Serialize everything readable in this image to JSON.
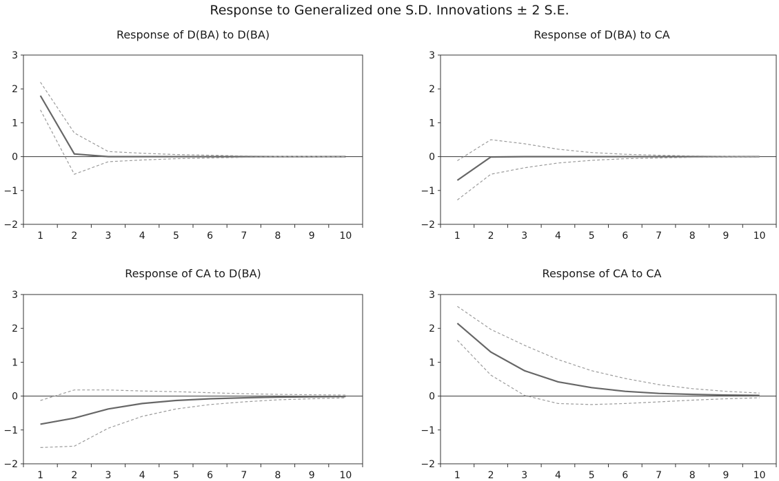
{
  "title": "Response to Generalized one S.D. Innovations ± 2 S.E.",
  "colors": {
    "response": "#666666",
    "band": "#9a9a9a",
    "axis": "#333333"
  },
  "chart_data": [
    {
      "type": "line",
      "title": "Response of D(BA) to D(BA)",
      "x": [
        1,
        2,
        3,
        4,
        5,
        6,
        7,
        8,
        9,
        10
      ],
      "ylim": [
        -2,
        3
      ],
      "yticks": [
        -2,
        -1,
        0,
        1,
        2,
        3
      ],
      "legend": "none",
      "series": [
        {
          "role": "response",
          "values": [
            1.8,
            0.08,
            0.0,
            0.0,
            0.0,
            0.0,
            0.0,
            0.0,
            0.0,
            0.0
          ]
        },
        {
          "role": "upper",
          "values": [
            2.2,
            0.7,
            0.15,
            0.1,
            0.06,
            0.04,
            0.02,
            0.01,
            0.01,
            0.0
          ]
        },
        {
          "role": "lower",
          "values": [
            1.38,
            -0.52,
            -0.15,
            -0.1,
            -0.06,
            -0.04,
            -0.02,
            -0.01,
            -0.01,
            0.0
          ]
        }
      ]
    },
    {
      "type": "line",
      "title": "Response of D(BA) to CA",
      "x": [
        1,
        2,
        3,
        4,
        5,
        6,
        7,
        8,
        9,
        10
      ],
      "ylim": [
        -2,
        3
      ],
      "yticks": [
        -2,
        -1,
        0,
        1,
        2,
        3
      ],
      "legend": "none",
      "series": [
        {
          "role": "response",
          "values": [
            -0.7,
            -0.01,
            0.0,
            0.0,
            0.0,
            0.0,
            0.0,
            0.0,
            0.0,
            0.0
          ]
        },
        {
          "role": "upper",
          "values": [
            -0.12,
            0.5,
            0.38,
            0.22,
            0.12,
            0.07,
            0.04,
            0.02,
            0.01,
            0.0
          ]
        },
        {
          "role": "lower",
          "values": [
            -1.28,
            -0.52,
            -0.33,
            -0.19,
            -0.11,
            -0.06,
            -0.04,
            -0.02,
            -0.01,
            0.0
          ]
        }
      ]
    },
    {
      "type": "line",
      "title": "Response of CA to D(BA)",
      "x": [
        1,
        2,
        3,
        4,
        5,
        6,
        7,
        8,
        9,
        10
      ],
      "ylim": [
        -2,
        3
      ],
      "yticks": [
        -2,
        -1,
        0,
        1,
        2,
        3
      ],
      "legend": "none",
      "series": [
        {
          "role": "response",
          "values": [
            -0.83,
            -0.65,
            -0.38,
            -0.22,
            -0.13,
            -0.08,
            -0.05,
            -0.03,
            -0.02,
            -0.01
          ]
        },
        {
          "role": "upper",
          "values": [
            -0.13,
            0.18,
            0.18,
            0.15,
            0.13,
            0.1,
            0.07,
            0.05,
            0.04,
            0.03
          ]
        },
        {
          "role": "lower",
          "values": [
            -1.52,
            -1.48,
            -0.95,
            -0.6,
            -0.38,
            -0.25,
            -0.17,
            -0.11,
            -0.08,
            -0.05
          ]
        }
      ]
    },
    {
      "type": "line",
      "title": "Response of CA to CA",
      "x": [
        1,
        2,
        3,
        4,
        5,
        6,
        7,
        8,
        9,
        10
      ],
      "ylim": [
        -2,
        3
      ],
      "yticks": [
        -2,
        -1,
        0,
        1,
        2,
        3
      ],
      "legend": "none",
      "series": [
        {
          "role": "response",
          "values": [
            2.15,
            1.3,
            0.75,
            0.42,
            0.25,
            0.14,
            0.08,
            0.05,
            0.03,
            0.02
          ]
        },
        {
          "role": "upper",
          "values": [
            2.65,
            1.97,
            1.5,
            1.08,
            0.75,
            0.52,
            0.34,
            0.22,
            0.14,
            0.09
          ]
        },
        {
          "role": "lower",
          "values": [
            1.65,
            0.62,
            0.02,
            -0.22,
            -0.25,
            -0.22,
            -0.17,
            -0.12,
            -0.08,
            -0.05
          ]
        }
      ]
    }
  ]
}
